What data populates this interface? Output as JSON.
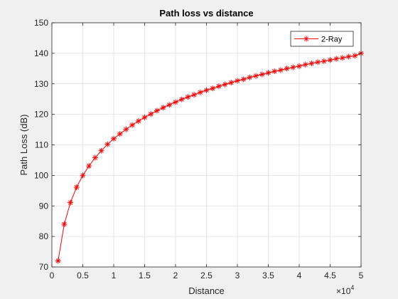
{
  "chart_data": {
    "type": "line",
    "title": "Path loss vs distance",
    "xlabel": "Distance",
    "ylabel": "Path Loss (dB)",
    "x_exponent_label": "10",
    "x_exponent_power": "4",
    "xlim": [
      0,
      50000
    ],
    "ylim": [
      70,
      150
    ],
    "x_tick_values": [
      0,
      5000,
      10000,
      15000,
      20000,
      25000,
      30000,
      35000,
      40000,
      45000,
      50000
    ],
    "x_tick_labels": [
      "0",
      "0.5",
      "1",
      "1.5",
      "2",
      "2.5",
      "3",
      "3.5",
      "4",
      "4.5",
      "5"
    ],
    "y_ticks": [
      70,
      80,
      90,
      100,
      110,
      120,
      130,
      140,
      150
    ],
    "grid": true,
    "legend_position": "top-right",
    "series": [
      {
        "name": "2-Ray",
        "color": "#ff0000",
        "marker": "asterisk",
        "x": [
          1000,
          2000,
          3000,
          4000,
          5000,
          6000,
          7000,
          8000,
          9000,
          10000,
          11000,
          12000,
          13000,
          14000,
          15000,
          16000,
          17000,
          18000,
          19000,
          20000,
          21000,
          22000,
          23000,
          24000,
          25000,
          26000,
          27000,
          28000,
          29000,
          30000,
          31000,
          32000,
          33000,
          34000,
          35000,
          36000,
          37000,
          38000,
          39000,
          40000,
          41000,
          42000,
          43000,
          44000,
          45000,
          46000,
          47000,
          48000,
          49000,
          50000
        ],
        "y": [
          72.0,
          84.0,
          91.1,
          96.1,
          100.0,
          103.1,
          105.8,
          108.1,
          110.2,
          112.0,
          113.6,
          115.1,
          116.5,
          117.8,
          119.0,
          120.1,
          121.2,
          122.2,
          123.1,
          124.0,
          124.9,
          125.7,
          126.4,
          127.2,
          127.9,
          128.5,
          129.2,
          129.8,
          130.4,
          131.0,
          131.5,
          132.1,
          132.6,
          133.1,
          133.6,
          134.1,
          134.5,
          135.0,
          135.4,
          135.8,
          136.3,
          136.7,
          137.1,
          137.4,
          137.8,
          138.2,
          138.5,
          138.9,
          139.2,
          140.0
        ]
      }
    ]
  }
}
